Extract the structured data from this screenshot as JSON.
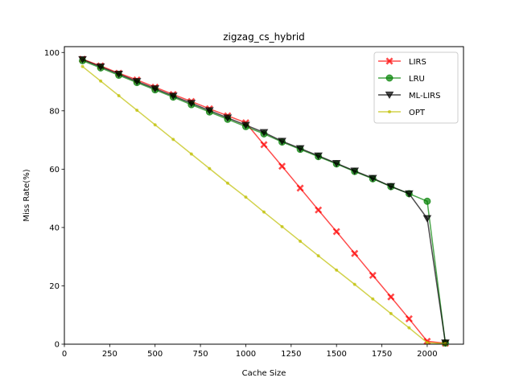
{
  "chart_data": {
    "type": "line",
    "title": "zigzag_cs_hybrid",
    "xlabel": "Cache Size",
    "ylabel": "Miss Rate(%)",
    "xlim": [
      0,
      2200
    ],
    "ylim": [
      0,
      102
    ],
    "xticks": [
      0,
      250,
      500,
      750,
      1000,
      1250,
      1500,
      1750,
      2000
    ],
    "yticks": [
      0,
      20,
      40,
      60,
      80,
      100
    ],
    "grid": false,
    "legend_position": "top-right",
    "x": [
      100,
      200,
      300,
      400,
      500,
      600,
      700,
      800,
      900,
      1000,
      1100,
      1200,
      1300,
      1400,
      1500,
      1600,
      1700,
      1800,
      1900,
      2000,
      2100
    ],
    "series": [
      {
        "name": "LIRS",
        "color": "#ff0000",
        "marker": "x",
        "values": [
          97.7,
          95.4,
          92.9,
          90.6,
          88.1,
          85.6,
          83.2,
          80.7,
          78.3,
          75.9,
          68.4,
          61.0,
          53.5,
          46.0,
          38.6,
          31.1,
          23.6,
          16.2,
          8.7,
          1.0,
          0.3
        ]
      },
      {
        "name": "LRU",
        "color": "#008000",
        "marker": "circle",
        "values": [
          97.2,
          94.7,
          92.2,
          89.7,
          87.2,
          84.7,
          82.1,
          79.6,
          77.1,
          74.6,
          72.1,
          69.3,
          66.8,
          64.3,
          61.8,
          59.2,
          56.7,
          54.0,
          51.6,
          49.0,
          0.4
        ]
      },
      {
        "name": "ML-LIRS",
        "color": "#000000",
        "marker": "triangle-down",
        "values": [
          97.6,
          95.1,
          92.6,
          90.1,
          87.6,
          85.1,
          82.6,
          80.1,
          77.6,
          75.1,
          72.6,
          69.6,
          67.1,
          64.6,
          62.0,
          59.4,
          56.9,
          54.1,
          51.6,
          43.1,
          0.5
        ]
      },
      {
        "name": "OPT",
        "color": "#bfbf00",
        "marker": "dot",
        "values": [
          95.2,
          90.2,
          85.2,
          80.2,
          75.2,
          70.2,
          65.2,
          60.2,
          55.2,
          50.4,
          45.3,
          40.3,
          35.3,
          30.3,
          25.4,
          20.5,
          15.5,
          10.5,
          5.6,
          0.5,
          0.2
        ]
      }
    ]
  }
}
